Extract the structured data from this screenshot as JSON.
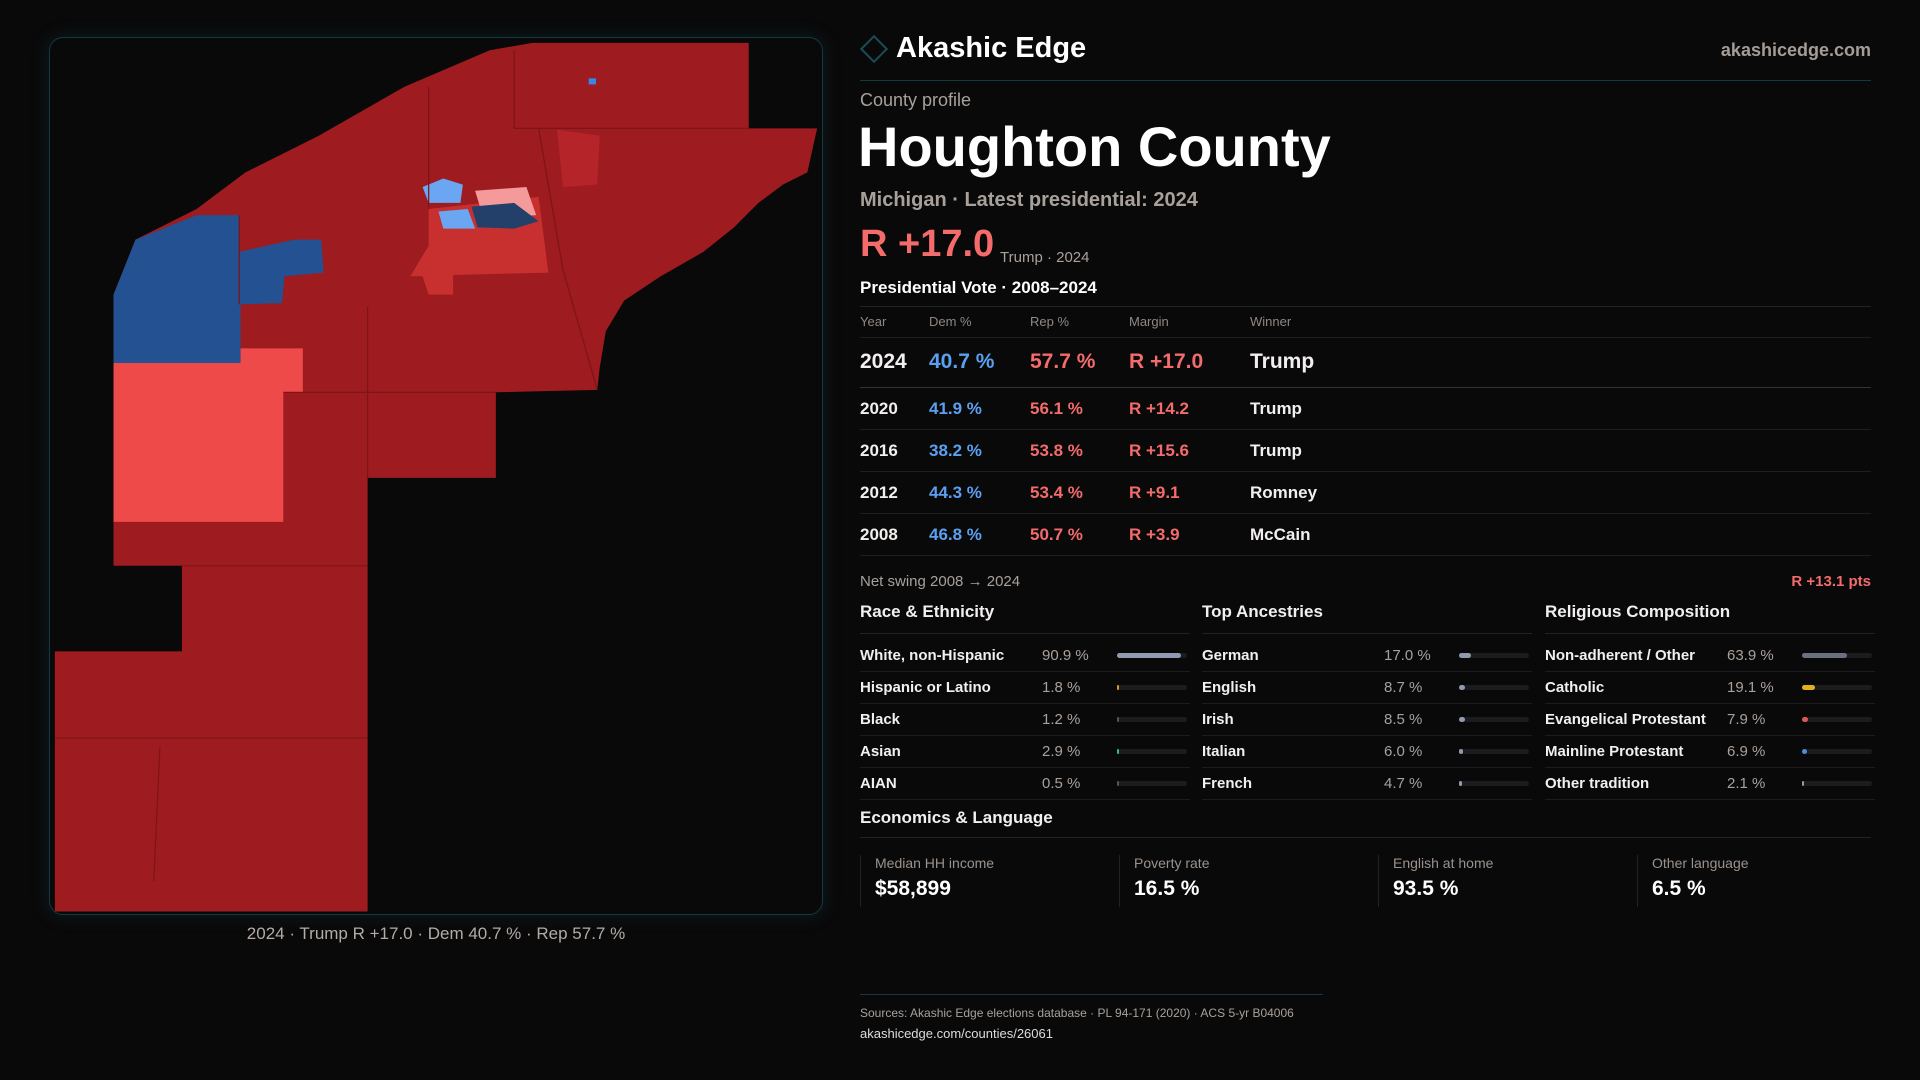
{
  "brand": {
    "name": "Akashic Edge",
    "site": "akashicedge.com"
  },
  "map": {
    "caption": "2024 · Trump R +17.0 · Dem 40.7 % · Rep 57.7 %",
    "colors": {
      "strong_r": "#9e1b1f",
      "mid_r": "#c8302f",
      "light_r": "#ef4a4a",
      "pink": "#f59a9a",
      "strong_d": "#235191",
      "light_d": "#6aa6f2"
    }
  },
  "profile": {
    "eyebrow": "County profile",
    "title": "Houghton County",
    "subtitle": "Michigan · Latest presidential: 2024",
    "margin": "R +17.0",
    "margin_note": "Trump · 2024"
  },
  "votes": {
    "title": "Presidential Vote · 2008–2024",
    "headers": [
      "Year",
      "Dem %",
      "Rep %",
      "Margin",
      "Winner"
    ],
    "rows": [
      {
        "year": "2024",
        "dem": "40.7 %",
        "rep": "57.7 %",
        "margin": "R +17.0",
        "winner": "Trump"
      },
      {
        "year": "2020",
        "dem": "41.9 %",
        "rep": "56.1 %",
        "margin": "R +14.2",
        "winner": "Trump"
      },
      {
        "year": "2016",
        "dem": "38.2 %",
        "rep": "53.8 %",
        "margin": "R +15.6",
        "winner": "Trump"
      },
      {
        "year": "2012",
        "dem": "44.3 %",
        "rep": "53.4 %",
        "margin": "R +9.1",
        "winner": "Romney"
      },
      {
        "year": "2008",
        "dem": "46.8 %",
        "rep": "50.7 %",
        "margin": "R +3.9",
        "winner": "McCain"
      }
    ],
    "swing_label": "Net swing 2008 → 2024",
    "swing_value": "R +13.1 pts"
  },
  "race": {
    "title": "Race & Ethnicity",
    "items": [
      {
        "label": "White, non-Hispanic",
        "pct": "90.9 %",
        "value": 90.9,
        "color": "#8e9bb0"
      },
      {
        "label": "Hispanic or Latino",
        "pct": "1.8 %",
        "value": 1.8,
        "color": "#d99a1e"
      },
      {
        "label": "Black",
        "pct": "1.2 %",
        "value": 1.2,
        "color": "#555"
      },
      {
        "label": "Asian",
        "pct": "2.9 %",
        "value": 2.9,
        "color": "#2bbf8a"
      },
      {
        "label": "AIAN",
        "pct": "0.5 %",
        "value": 0.5,
        "color": "#555"
      }
    ]
  },
  "ancestry": {
    "title": "Top Ancestries",
    "items": [
      {
        "label": "German",
        "pct": "17.0 %",
        "value": 17.0,
        "color": "#8e9bb0"
      },
      {
        "label": "English",
        "pct": "8.7 %",
        "value": 8.7,
        "color": "#8e9bb0"
      },
      {
        "label": "Irish",
        "pct": "8.5 %",
        "value": 8.5,
        "color": "#8e9bb0"
      },
      {
        "label": "Italian",
        "pct": "6.0 %",
        "value": 6.0,
        "color": "#8e9bb0"
      },
      {
        "label": "French",
        "pct": "4.7 %",
        "value": 4.7,
        "color": "#8e9bb0"
      }
    ]
  },
  "religion": {
    "title": "Religious Composition",
    "items": [
      {
        "label": "Non-adherent / Other",
        "pct": "63.9 %",
        "value": 63.9,
        "color": "#6b7080"
      },
      {
        "label": "Catholic",
        "pct": "19.1 %",
        "value": 19.1,
        "color": "#e0b020"
      },
      {
        "label": "Evangelical Protestant",
        "pct": "7.9 %",
        "value": 7.9,
        "color": "#e05555"
      },
      {
        "label": "Mainline Protestant",
        "pct": "6.9 %",
        "value": 6.9,
        "color": "#4a8fe0"
      },
      {
        "label": "Other tradition",
        "pct": "2.1 %",
        "value": 2.1,
        "color": "#9a9a9a"
      }
    ]
  },
  "economics": {
    "title": "Economics & Language",
    "cards": [
      {
        "label": "Median HH income",
        "value": "$58,899"
      },
      {
        "label": "Poverty rate",
        "value": "16.5 %"
      },
      {
        "label": "English at home",
        "value": "93.5 %"
      },
      {
        "label": "Other language",
        "value": "6.5 %"
      }
    ]
  },
  "footer": {
    "sources": "Sources: Akashic Edge elections database · PL 94-171 (2020) · ACS 5-yr B04006",
    "url": "akashicedge.com/counties/26061"
  }
}
